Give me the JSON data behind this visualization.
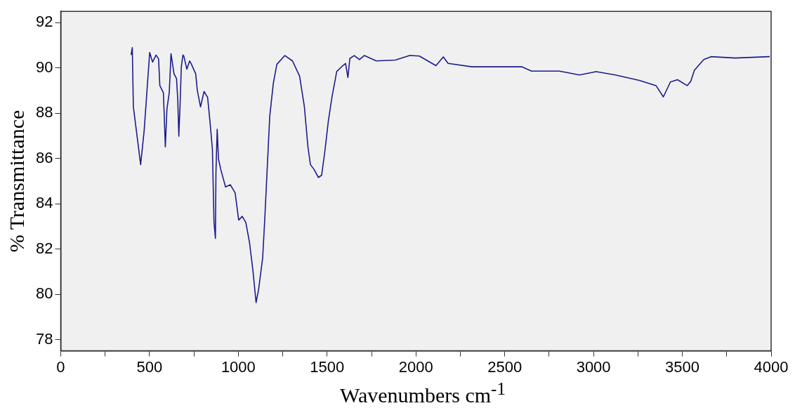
{
  "chart_data": {
    "type": "line",
    "xlabel": "Wavenumbers cm$^{-1}$",
    "ylabel": "% Transmittance",
    "xlim": [
      0,
      4000
    ],
    "ylim": [
      77.5,
      92.5
    ],
    "xticks": [
      0,
      {
        "value": 250,
        "label": null
      },
      500,
      {
        "value": 750,
        "label": null
      },
      1000,
      {
        "value": 1250,
        "label": null
      },
      1500,
      {
        "value": 1750,
        "label": null
      },
      2000,
      {
        "value": 2250,
        "label": null
      },
      2500,
      {
        "value": 2750,
        "label": null
      },
      3000,
      {
        "value": 3250,
        "label": null
      },
      3500,
      {
        "value": 3750,
        "label": null
      },
      4000
    ],
    "yticks": [
      78,
      80,
      82,
      84,
      86,
      88,
      90,
      92
    ],
    "grid": false,
    "legend": false,
    "marker": "none",
    "line_style": "solid",
    "series": [
      {
        "color": "#1c1c8c",
        "x": [
          396,
          403,
          409,
          450,
          470,
          490,
          501,
          517,
          537,
          551,
          558,
          578,
          582,
          589,
          598,
          611,
          621,
          638,
          652,
          659,
          665,
          672,
          679,
          688,
          693,
          710,
          726,
          734,
          760,
          769,
          787,
          807,
          827,
          840,
          854,
          863,
          871,
          874,
          881,
          888,
          901,
          928,
          955,
          982,
          1002,
          1022,
          1042,
          1063,
          1083,
          1100,
          1114,
          1137,
          1150,
          1164,
          1177,
          1197,
          1217,
          1262,
          1305,
          1345,
          1372,
          1392,
          1406,
          1426,
          1451,
          1469,
          1487,
          1507,
          1527,
          1554,
          1588,
          1604,
          1617,
          1628,
          1653,
          1682,
          1709,
          1777,
          1884,
          1965,
          2019,
          2113,
          2154,
          2181,
          2315,
          2598,
          2651,
          2808,
          2921,
          3015,
          3123,
          3258,
          3352,
          3393,
          3433,
          3473,
          3527,
          3547,
          3568,
          3621,
          3662,
          3797,
          3992
        ],
        "values": [
          90.57,
          90.9,
          88.28,
          85.73,
          87.25,
          89.48,
          90.68,
          90.26,
          90.57,
          90.4,
          89.22,
          88.9,
          88.07,
          86.51,
          88.18,
          88.9,
          90.63,
          89.74,
          89.53,
          88.6,
          86.98,
          88.38,
          90.05,
          90.57,
          90.53,
          89.95,
          90.31,
          90.2,
          89.74,
          89.01,
          88.28,
          88.96,
          88.7,
          87.66,
          86.41,
          83.18,
          82.47,
          85.37,
          87.29,
          85.99,
          85.52,
          84.74,
          84.84,
          84.48,
          83.28,
          83.44,
          83.18,
          82.29,
          80.99,
          79.63,
          80.2,
          81.6,
          83.49,
          85.78,
          87.87,
          89.32,
          90.16,
          90.55,
          90.31,
          89.64,
          88.28,
          86.51,
          85.73,
          85.52,
          85.16,
          85.26,
          86.3,
          87.66,
          88.7,
          89.84,
          90.1,
          90.2,
          89.58,
          90.42,
          90.55,
          90.37,
          90.55,
          90.31,
          90.35,
          90.55,
          90.53,
          90.1,
          90.49,
          90.2,
          90.05,
          90.05,
          89.86,
          89.86,
          89.69,
          89.84,
          89.69,
          89.45,
          89.22,
          88.72,
          89.38,
          89.48,
          89.22,
          89.4,
          89.9,
          90.37,
          90.5,
          90.44,
          90.5
        ]
      }
    ]
  }
}
